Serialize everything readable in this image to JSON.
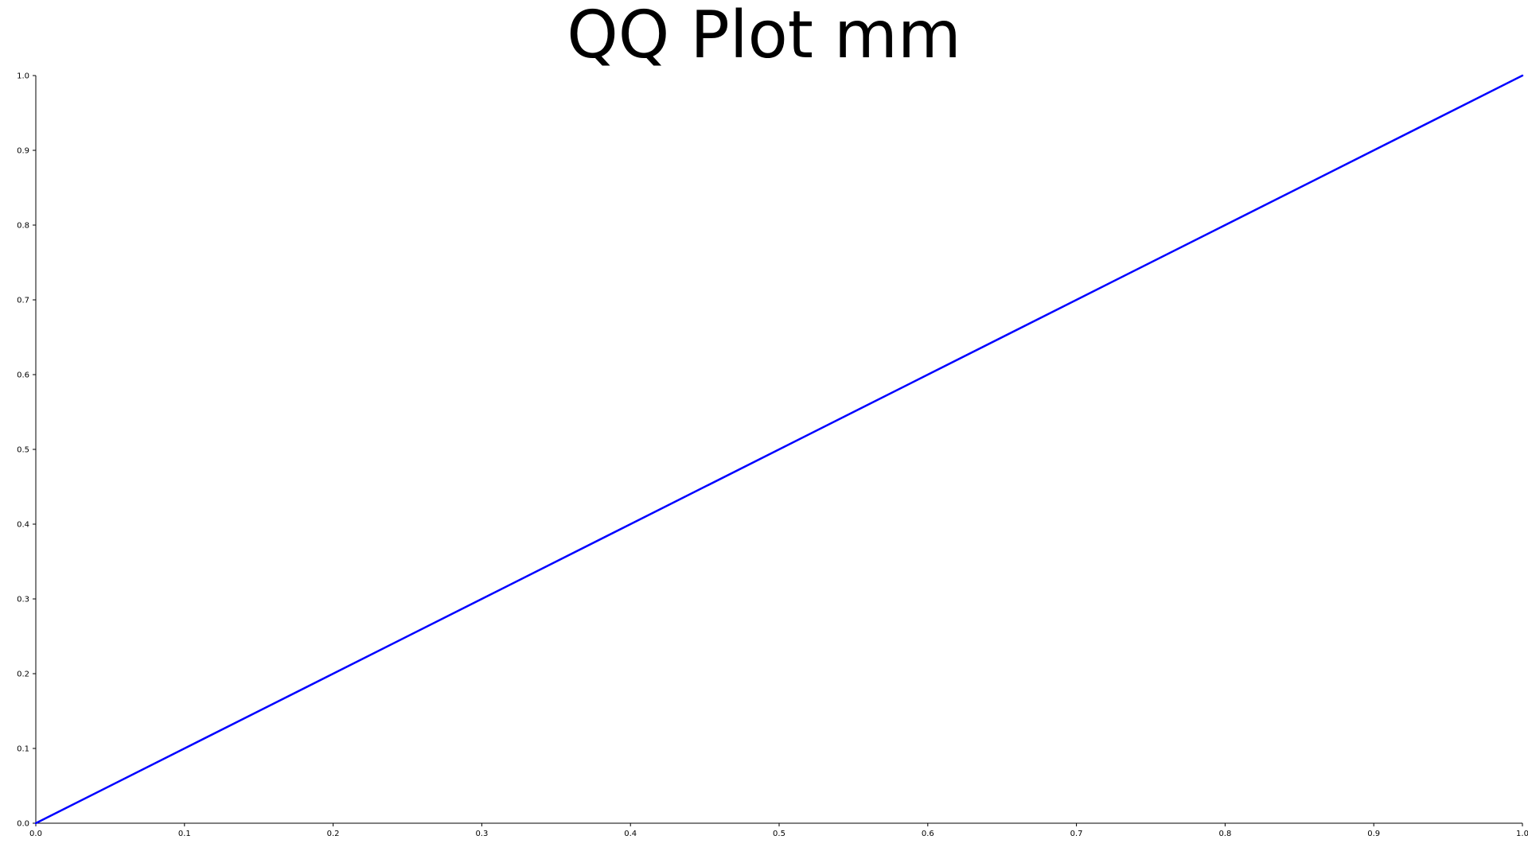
{
  "chart_data": {
    "type": "line",
    "title": "QQ Plot mm",
    "xlabel": "",
    "ylabel": "",
    "xlim": [
      0,
      1
    ],
    "ylim": [
      0,
      1
    ],
    "x_ticks": [
      "0.0",
      "0.1",
      "0.2",
      "0.3",
      "0.4",
      "0.5",
      "0.6",
      "0.7",
      "0.8",
      "0.9",
      "1.0"
    ],
    "y_ticks": [
      "0.0",
      "0.1",
      "0.2",
      "0.3",
      "0.4",
      "0.5",
      "0.6",
      "0.7",
      "0.8",
      "0.9",
      "1.0"
    ],
    "grid": false,
    "series": [
      {
        "color": "#0000ff",
        "x": [
          0.0,
          0.1,
          0.2,
          0.3,
          0.4,
          0.5,
          0.6,
          0.7,
          0.8,
          0.9,
          1.0
        ],
        "y": [
          0.0,
          0.1,
          0.2,
          0.3,
          0.4,
          0.5,
          0.6,
          0.7,
          0.8,
          0.9,
          1.0
        ]
      }
    ]
  }
}
